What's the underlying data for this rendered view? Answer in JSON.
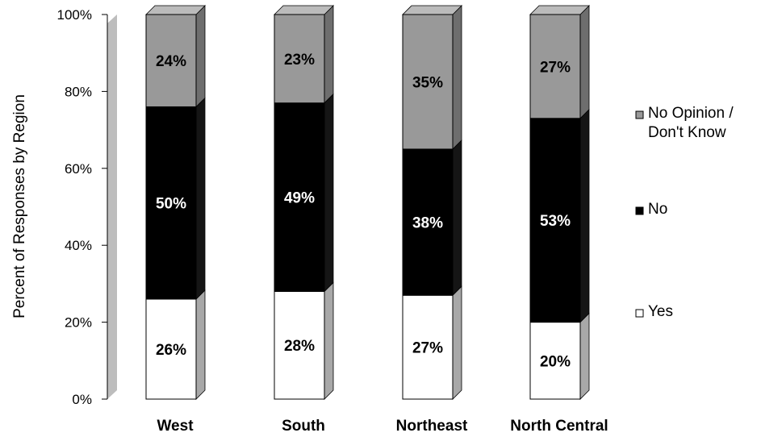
{
  "chart_data": {
    "type": "bar",
    "stacked": true,
    "categories": [
      "West",
      "South",
      "Northeast",
      "North Central"
    ],
    "series": [
      {
        "name": "Yes",
        "values": [
          26,
          28,
          27,
          20
        ],
        "labels": [
          "26%",
          "28%",
          "27%",
          "20%"
        ]
      },
      {
        "name": "No",
        "values": [
          50,
          49,
          38,
          53
        ],
        "labels": [
          "50%",
          "49%",
          "38%",
          "53%"
        ]
      },
      {
        "name": "No Opinion / Don't Know",
        "values": [
          24,
          23,
          35,
          27
        ],
        "labels": [
          "24%",
          "23%",
          "35%",
          "27%"
        ]
      }
    ],
    "ylabel": "Percent of Responses by Region",
    "ylim": [
      0,
      100
    ],
    "yticks": [
      "0%",
      "20%",
      "40%",
      "60%",
      "80%",
      "100%"
    ],
    "legend_placement": "right",
    "legend": [
      {
        "lines": [
          "No Opinion /",
          "Don't Know"
        ],
        "color": "#999999"
      },
      {
        "lines": [
          "No"
        ],
        "color": "#000000"
      },
      {
        "lines": [
          "Yes"
        ],
        "color": "#ffffff"
      }
    ],
    "colors": {
      "Yes": "#ffffff",
      "No": "#000000",
      "No Opinion / Don't Know": "#999999"
    },
    "grid": false
  }
}
